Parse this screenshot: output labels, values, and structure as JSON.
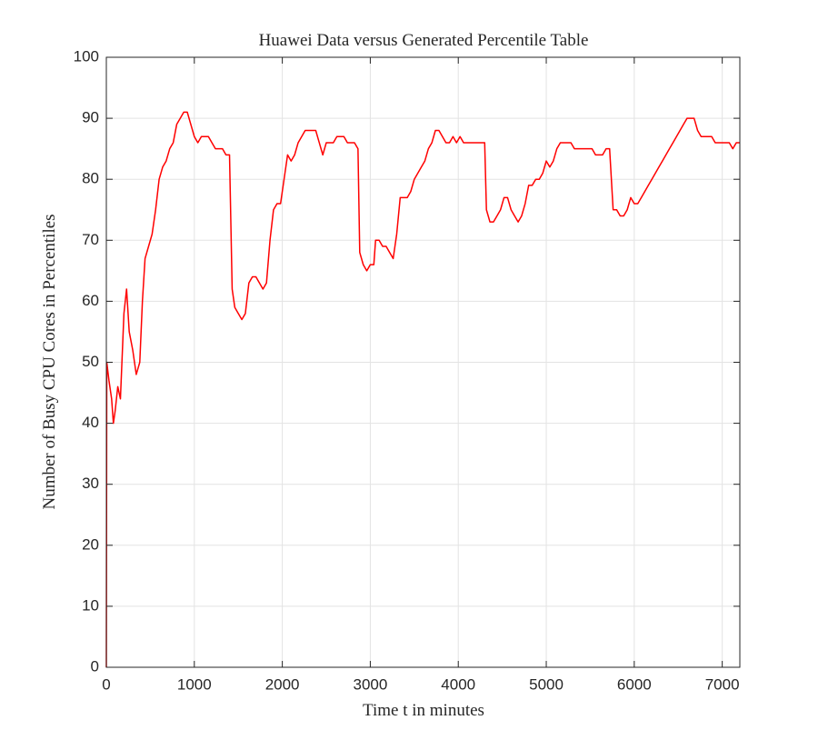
{
  "chart_data": {
    "type": "line",
    "title": "Huawei Data versus Generated Percentile Table",
    "x_label": "Time t in minutes",
    "y_label": "Number of Busy CPU Cores in Percentiles",
    "grid": true,
    "xlim": [
      0,
      7200
    ],
    "xticks": [
      0,
      1000,
      2000,
      3000,
      4000,
      5000,
      6000,
      7000
    ],
    "ylim": [
      0,
      100
    ],
    "yticks": [
      0,
      10,
      20,
      30,
      40,
      50,
      60,
      70,
      80,
      90,
      100
    ],
    "x": [
      0,
      5,
      30,
      60,
      80,
      100,
      130,
      160,
      200,
      230,
      260,
      300,
      340,
      380,
      410,
      440,
      480,
      520,
      560,
      600,
      640,
      680,
      720,
      760,
      800,
      840,
      880,
      920,
      960,
      1000,
      1040,
      1080,
      1120,
      1160,
      1200,
      1240,
      1280,
      1320,
      1360,
      1400,
      1430,
      1460,
      1500,
      1540,
      1580,
      1620,
      1660,
      1700,
      1740,
      1780,
      1820,
      1860,
      1900,
      1940,
      1980,
      2020,
      2060,
      2100,
      2140,
      2180,
      2220,
      2260,
      2300,
      2340,
      2380,
      2420,
      2460,
      2500,
      2540,
      2580,
      2620,
      2660,
      2700,
      2740,
      2780,
      2820,
      2860,
      2880,
      2920,
      2960,
      3000,
      3040,
      3060,
      3100,
      3140,
      3180,
      3220,
      3260,
      3300,
      3340,
      3380,
      3420,
      3460,
      3500,
      3540,
      3580,
      3620,
      3660,
      3700,
      3740,
      3780,
      3820,
      3860,
      3900,
      3940,
      3980,
      4020,
      4060,
      4100,
      4140,
      4180,
      4220,
      4260,
      4300,
      4320,
      4360,
      4400,
      4440,
      4480,
      4520,
      4560,
      4600,
      4640,
      4680,
      4720,
      4760,
      4800,
      4840,
      4880,
      4920,
      4960,
      5000,
      5040,
      5080,
      5120,
      5160,
      5200,
      5240,
      5280,
      5320,
      5360,
      5400,
      5440,
      5480,
      5520,
      5560,
      5600,
      5640,
      5680,
      5720,
      5760,
      5800,
      5840,
      5880,
      5920,
      5960,
      6000,
      6040,
      6080,
      6120,
      6160,
      6200,
      6240,
      6280,
      6320,
      6360,
      6400,
      6440,
      6480,
      6520,
      6560,
      6600,
      6640,
      6680,
      6720,
      6760,
      6800,
      6840,
      6880,
      6920,
      6960,
      7000,
      7040,
      7080,
      7120,
      7160,
      7200
    ],
    "series": [
      {
        "color": "#ff0000",
        "values": [
          0,
          50,
          47,
          44,
          40,
          42,
          46,
          44,
          58,
          62,
          55,
          52,
          48,
          50,
          60,
          67,
          69,
          71,
          75,
          80,
          82,
          83,
          85,
          86,
          89,
          90,
          91,
          91,
          89,
          87,
          86,
          87,
          87,
          87,
          86,
          85,
          85,
          85,
          84,
          84,
          62,
          59,
          58,
          57,
          58,
          63,
          64,
          64,
          63,
          62,
          63,
          70,
          75,
          76,
          76,
          80,
          84,
          83,
          84,
          86,
          87,
          88,
          88,
          88,
          88,
          86,
          84,
          86,
          86,
          86,
          87,
          87,
          87,
          86,
          86,
          86,
          85,
          68,
          66,
          65,
          66,
          66,
          70,
          70,
          69,
          69,
          68,
          67,
          71,
          77,
          77,
          77,
          78,
          80,
          81,
          82,
          83,
          85,
          86,
          88,
          88,
          87,
          86,
          86,
          87,
          86,
          87,
          86,
          86,
          86,
          86,
          86,
          86,
          86,
          75,
          73,
          73,
          74,
          75,
          77,
          77,
          75,
          74,
          73,
          74,
          76,
          79,
          79,
          80,
          80,
          81,
          83,
          82,
          83,
          85,
          86,
          86,
          86,
          86,
          85,
          85,
          85,
          85,
          85,
          85,
          84,
          84,
          84,
          85,
          85,
          75,
          75,
          74,
          74,
          75,
          77,
          76,
          76,
          77,
          78,
          79,
          80,
          81,
          82,
          83,
          84,
          85,
          86,
          87,
          88,
          89,
          90,
          90,
          90,
          88,
          87,
          87,
          87,
          87,
          86,
          86,
          86,
          86,
          86,
          85,
          86,
          86
        ]
      }
    ]
  }
}
